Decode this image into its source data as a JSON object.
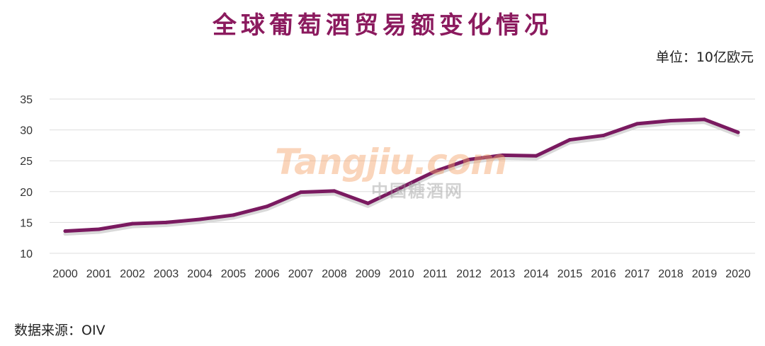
{
  "title": "全球葡萄酒贸易额变化情况",
  "unit_label": "单位：10亿欧元",
  "source_label": "数据来源：OIV",
  "watermark": {
    "brand": "Tangjiu.com",
    "chinese": "中国糖酒网"
  },
  "colors": {
    "line": "#7a1a60",
    "title": "#8b1a5e",
    "grid": "#dddddd",
    "shadow": "#d9d9d9"
  },
  "chart_data": {
    "type": "line",
    "title": "全球葡萄酒贸易额变化情况",
    "xlabel": "",
    "ylabel": "",
    "categories": [
      "2000",
      "2001",
      "2002",
      "2003",
      "2004",
      "2005",
      "2006",
      "2007",
      "2008",
      "2009",
      "2010",
      "2011",
      "2012",
      "2013",
      "2014",
      "2015",
      "2016",
      "2017",
      "2018",
      "2019",
      "2020"
    ],
    "series": [
      {
        "values": [
          13.6,
          13.9,
          14.8,
          15.0,
          15.5,
          16.2,
          17.6,
          19.9,
          20.1,
          18.1,
          20.7,
          23.3,
          25.2,
          25.9,
          25.8,
          28.4,
          29.1,
          31.0,
          31.5,
          31.7,
          29.6
        ]
      }
    ],
    "ylim": [
      10,
      35
    ],
    "yticks": [
      10,
      15,
      20,
      25,
      30,
      35
    ],
    "grid": true,
    "legend": "none"
  }
}
